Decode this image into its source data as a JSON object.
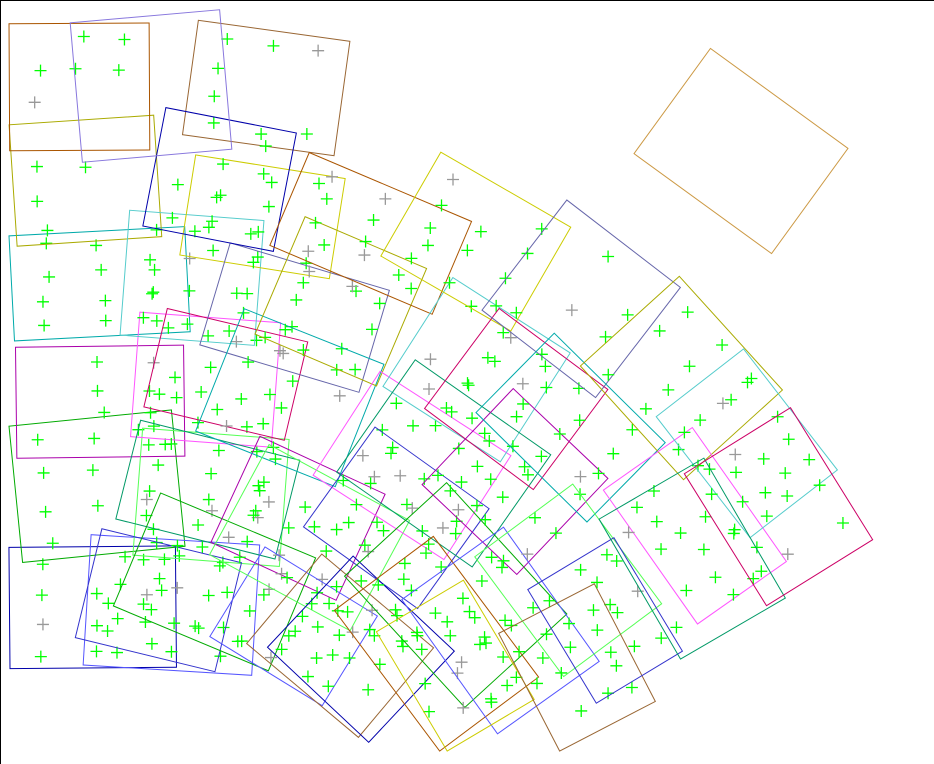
{
  "view": {
    "background": "#ffffff",
    "frame_border": "#000000",
    "marker_colors": {
      "matched": "#00ff00",
      "unmatched": "#999999"
    },
    "outline_palette": [
      "#0000aa",
      "#00aa00",
      "#aa00aa",
      "#00aaaa",
      "#aaaa00",
      "#aa5500",
      "#5555ff",
      "#55ff55",
      "#ff55ff",
      "#55cccc",
      "#cccc00",
      "#996633",
      "#3333cc",
      "#009966",
      "#cc0066",
      "#6666aa"
    ],
    "marker_icon": "plus-icon"
  }
}
